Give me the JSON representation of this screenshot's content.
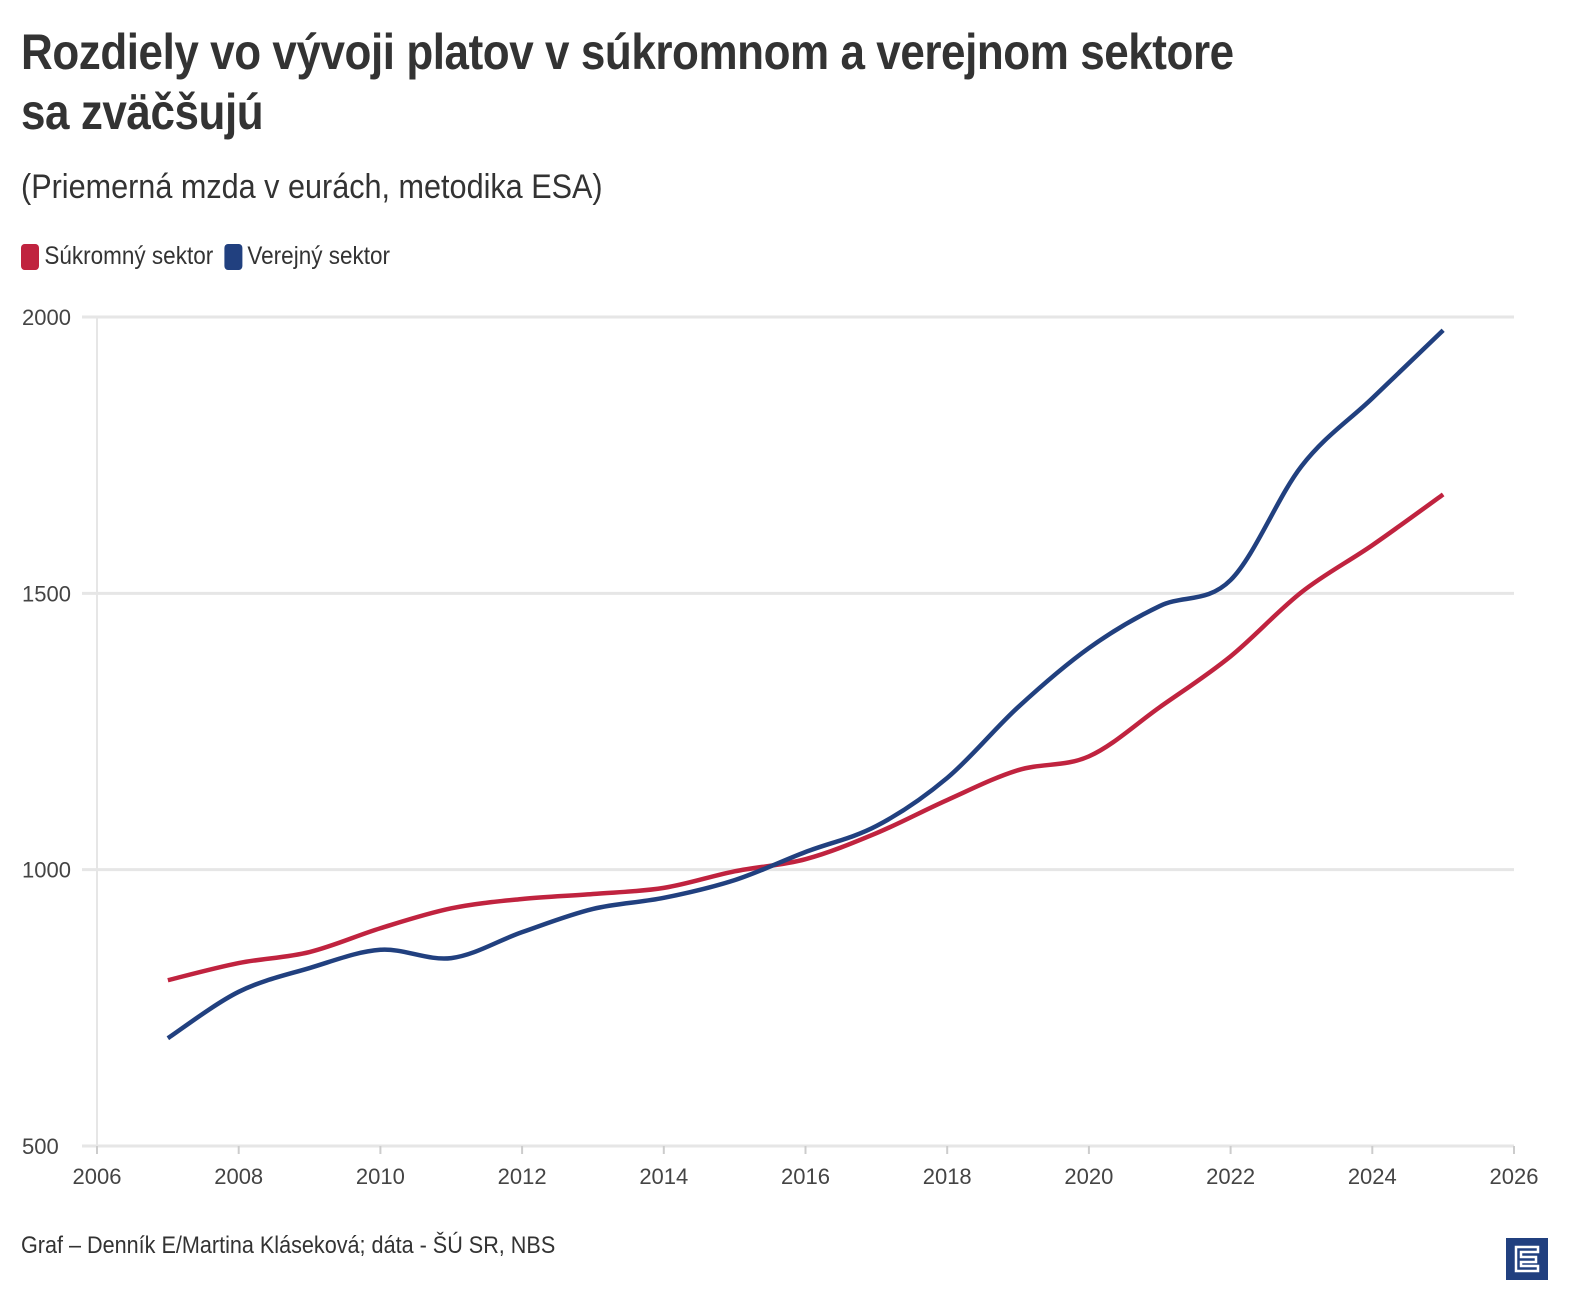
{
  "title": "Rozdiely vo vývoji platov v súkromnom a verejnom sektore sa zväčšujú",
  "subtitle": "(Priemerná mzda v eurách, metodika ESA)",
  "footer": "Graf – Denník E/Martina Kláseková; dáta - ŠÚ SR, NBS",
  "logo_text": "E",
  "chart_data": {
    "type": "line",
    "title": "Rozdiely vo vývoji platov v súkromnom a verejnom sektore sa zväčšujú",
    "subtitle": "(Priemerná mzda v eurách, metodika ESA)",
    "xlabel": "",
    "ylabel": "",
    "xlim": [
      2006,
      2026
    ],
    "ylim": [
      500,
      2000
    ],
    "x_ticks": [
      2006,
      2008,
      2010,
      2012,
      2014,
      2016,
      2018,
      2020,
      2022,
      2024,
      2026
    ],
    "y_ticks": [
      500,
      1000,
      1500,
      2000
    ],
    "grid": "horizontal",
    "legend_position": "top-left",
    "x": [
      2007,
      2008,
      2009,
      2010,
      2011,
      2012,
      2013,
      2014,
      2015,
      2016,
      2017,
      2018,
      2019,
      2020,
      2021,
      2022,
      2023,
      2024,
      2025
    ],
    "series": [
      {
        "name": "Súkromný sektor",
        "color": "#c0233f",
        "values": [
          800,
          831,
          851,
          894,
          930,
          947,
          956,
          967,
          997,
          1019,
          1066,
          1126,
          1180,
          1205,
          1294,
          1386,
          1502,
          1587,
          1679
        ]
      },
      {
        "name": "Verejný sektor",
        "color": "#21407f",
        "values": [
          695,
          779,
          822,
          855,
          840,
          887,
          929,
          949,
          981,
          1032,
          1079,
          1166,
          1294,
          1401,
          1477,
          1524,
          1730,
          1853,
          1976
        ]
      }
    ]
  }
}
